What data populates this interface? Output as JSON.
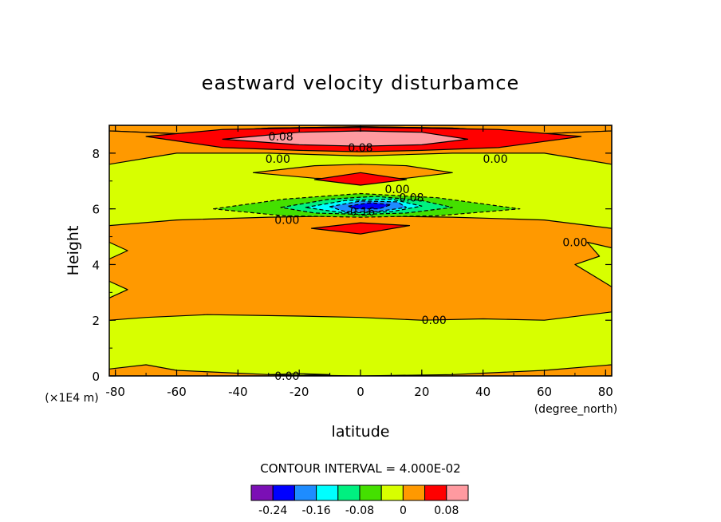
{
  "chart_data": {
    "type": "contour",
    "title": "eastward velocity disturbamce",
    "xlabel": "latitude",
    "ylabel": "Height",
    "x_unit": "(degree_north)",
    "y_unit": "(×1E4 m)",
    "xlim": [
      -82,
      82
    ],
    "ylim": [
      0,
      9
    ],
    "x_ticks": [
      -80,
      -60,
      -40,
      -20,
      0,
      20,
      40,
      60,
      80
    ],
    "y_ticks": [
      0,
      2,
      4,
      6,
      8
    ],
    "grid": false,
    "contour_interval_text": "CONTOUR INTERVAL = 4.000E-02",
    "levels": [
      {
        "label": "",
        "color": "#7b0fb5"
      },
      {
        "label": "-0.24",
        "color": "#0000ff"
      },
      {
        "label": "",
        "color": "#1e8cff"
      },
      {
        "label": "-0.16",
        "color": "#00ffff"
      },
      {
        "label": "",
        "color": "#00f080"
      },
      {
        "label": "-0.08",
        "color": "#44e000"
      },
      {
        "label": "",
        "color": "#d7ff00"
      },
      {
        "label": "0",
        "color": "#ff9900"
      },
      {
        "label": "",
        "color": "#ff0000"
      },
      {
        "label": "0.08",
        "color": "#ff9aa0"
      }
    ],
    "contour_labels": [
      {
        "text": "0.08",
        "x": -26,
        "y": 8.6
      },
      {
        "text": "0.08",
        "x": 0,
        "y": 8.2
      },
      {
        "text": "0.00",
        "x": -27,
        "y": 7.8
      },
      {
        "text": "0.00",
        "x": 44,
        "y": 7.8
      },
      {
        "text": "0.00",
        "x": 12,
        "y": 6.7
      },
      {
        "text": "-0.08",
        "x": 16,
        "y": 6.4
      },
      {
        "text": "-0.16",
        "x": 0,
        "y": 5.9
      },
      {
        "text": "0.00",
        "x": -24,
        "y": 5.6
      },
      {
        "text": "0.00",
        "x": 70,
        "y": 4.8
      },
      {
        "text": "0.00",
        "x": 24,
        "y": 2.0
      },
      {
        "text": "0.00",
        "x": -24,
        "y": 0.0
      }
    ],
    "regions": [
      {
        "level": 0.04,
        "polygon": [
          [
            -82,
            8.8
          ],
          [
            -60,
            8.7
          ],
          [
            -30,
            8.9
          ],
          [
            0,
            8.95
          ],
          [
            30,
            8.9
          ],
          [
            60,
            8.7
          ],
          [
            82,
            8.8
          ],
          [
            82,
            9
          ],
          [
            -82,
            9
          ]
        ]
      },
      {
        "level": 0.04,
        "polygon": [
          [
            -82,
            7.6
          ],
          [
            -60,
            8.0
          ],
          [
            -30,
            8.0
          ],
          [
            0,
            7.9
          ],
          [
            30,
            8.0
          ],
          [
            60,
            8.0
          ],
          [
            82,
            7.6
          ],
          [
            82,
            8.8
          ],
          [
            60,
            8.7
          ],
          [
            30,
            8.9
          ],
          [
            0,
            8.95
          ],
          [
            -30,
            8.9
          ],
          [
            -60,
            8.7
          ],
          [
            -82,
            8.8
          ]
        ]
      },
      {
        "level": 0.08,
        "polygon": [
          [
            -70,
            8.6
          ],
          [
            -45,
            8.2
          ],
          [
            -20,
            8.1
          ],
          [
            0,
            8.05
          ],
          [
            20,
            8.1
          ],
          [
            45,
            8.2
          ],
          [
            72,
            8.6
          ],
          [
            45,
            8.85
          ],
          [
            20,
            8.9
          ],
          [
            0,
            8.92
          ],
          [
            -20,
            8.9
          ],
          [
            -45,
            8.85
          ]
        ]
      },
      {
        "level": 0.12,
        "polygon": [
          [
            -45,
            8.5
          ],
          [
            -20,
            8.3
          ],
          [
            0,
            8.25
          ],
          [
            20,
            8.3
          ],
          [
            35,
            8.5
          ],
          [
            20,
            8.75
          ],
          [
            0,
            8.8
          ],
          [
            -20,
            8.75
          ]
        ]
      },
      {
        "level": 0.04,
        "polygon": [
          [
            -35,
            7.3
          ],
          [
            -15,
            7.1
          ],
          [
            0,
            7.05
          ],
          [
            15,
            7.1
          ],
          [
            30,
            7.3
          ],
          [
            15,
            7.55
          ],
          [
            0,
            7.6
          ],
          [
            -15,
            7.55
          ]
        ]
      },
      {
        "level": 0.08,
        "polygon": [
          [
            -15,
            7.05
          ],
          [
            0,
            6.85
          ],
          [
            15,
            7.05
          ],
          [
            0,
            7.3
          ]
        ]
      },
      {
        "level": 0.04,
        "polygon": [
          [
            -82,
            5.4
          ],
          [
            -60,
            5.6
          ],
          [
            -30,
            5.7
          ],
          [
            0,
            5.75
          ],
          [
            30,
            5.7
          ],
          [
            60,
            5.6
          ],
          [
            82,
            5.3
          ],
          [
            82,
            4.6
          ],
          [
            74,
            4.8
          ],
          [
            78,
            4.3
          ],
          [
            70,
            4.0
          ],
          [
            76,
            3.6
          ],
          [
            82,
            3.2
          ],
          [
            82,
            2.3
          ],
          [
            60,
            2.0
          ],
          [
            40,
            2.05
          ],
          [
            20,
            2.0
          ],
          [
            0,
            2.1
          ],
          [
            -20,
            2.15
          ],
          [
            -50,
            2.2
          ],
          [
            -70,
            2.1
          ],
          [
            -82,
            2.0
          ],
          [
            -82,
            2.8
          ],
          [
            -76,
            3.1
          ],
          [
            -82,
            3.4
          ],
          [
            -82,
            4.2
          ],
          [
            -76,
            4.5
          ],
          [
            -82,
            4.8
          ]
        ]
      },
      {
        "level": 0.08,
        "polygon": [
          [
            -16,
            5.3
          ],
          [
            0,
            5.5
          ],
          [
            16,
            5.4
          ],
          [
            0,
            5.1
          ]
        ]
      },
      {
        "level": -0.04,
        "polygon": [
          [
            -48,
            6.0
          ],
          [
            -25,
            6.35
          ],
          [
            0,
            6.55
          ],
          [
            25,
            6.4
          ],
          [
            52,
            6.0
          ],
          [
            25,
            5.75
          ],
          [
            0,
            5.7
          ],
          [
            -25,
            5.75
          ]
        ]
      },
      {
        "level": -0.08,
        "polygon": [
          [
            -26,
            6.05
          ],
          [
            -10,
            6.35
          ],
          [
            5,
            6.45
          ],
          [
            20,
            6.3
          ],
          [
            30,
            6.05
          ],
          [
            15,
            5.85
          ],
          [
            0,
            5.8
          ],
          [
            -15,
            5.85
          ]
        ]
      },
      {
        "level": -0.12,
        "polygon": [
          [
            -18,
            6.05
          ],
          [
            -5,
            6.3
          ],
          [
            10,
            6.35
          ],
          [
            20,
            6.1
          ],
          [
            10,
            5.9
          ],
          [
            -5,
            5.85
          ]
        ]
      },
      {
        "level": -0.16,
        "polygon": [
          [
            -10,
            6.08
          ],
          [
            0,
            6.28
          ],
          [
            12,
            6.25
          ],
          [
            15,
            6.05
          ],
          [
            5,
            5.9
          ],
          [
            -5,
            5.9
          ]
        ]
      },
      {
        "level": -0.2,
        "polygon": [
          [
            -4,
            6.1
          ],
          [
            3,
            6.22
          ],
          [
            10,
            6.15
          ],
          [
            6,
            6.0
          ],
          [
            -2,
            6.0
          ]
        ]
      },
      {
        "level": 0.04,
        "polygon": [
          [
            -82,
            0.25
          ],
          [
            -70,
            0.4
          ],
          [
            -60,
            0.2
          ],
          [
            -30,
            0.05
          ],
          [
            0,
            0.0
          ],
          [
            30,
            0.05
          ],
          [
            60,
            0.2
          ],
          [
            82,
            0.4
          ],
          [
            82,
            0
          ],
          [
            -82,
            0
          ]
        ]
      },
      {
        "level": 0.0,
        "polygon": [
          [
            -30,
            0.05
          ],
          [
            -20,
            0.08
          ],
          [
            -10,
            0.05
          ],
          [
            -20,
            0.02
          ]
        ]
      }
    ]
  }
}
